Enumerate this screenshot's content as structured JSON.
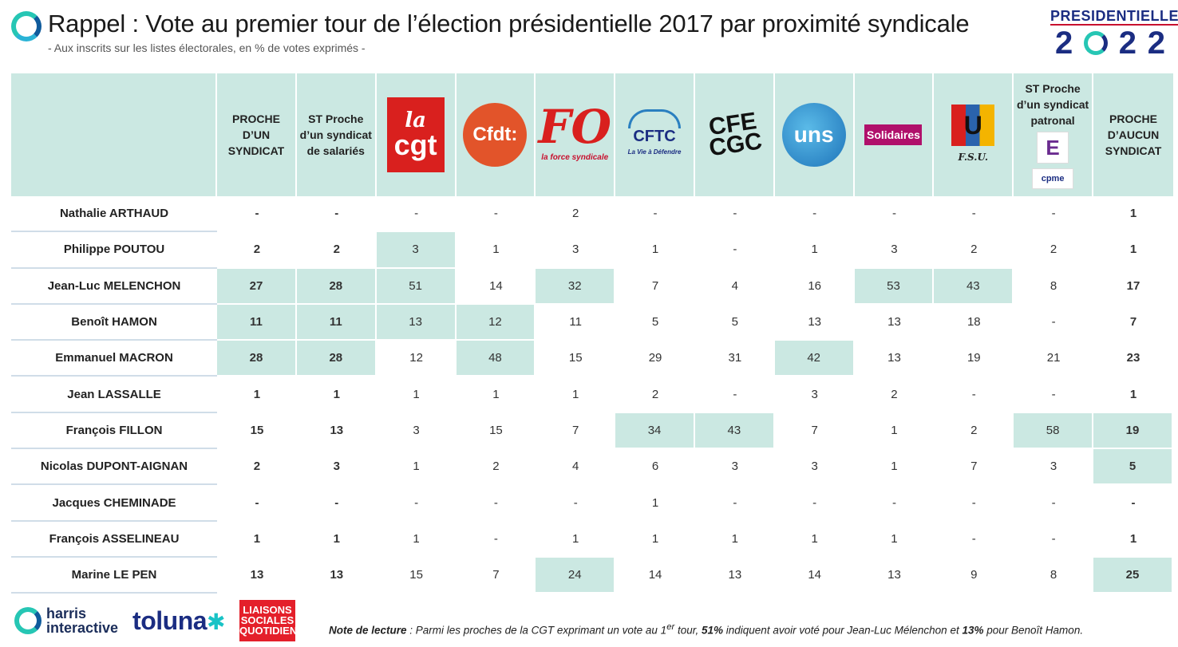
{
  "header": {
    "title": "Rappel : Vote au premier tour de l’élection présidentielle 2017 par proximité syndicale",
    "subtitle": "- Aux inscrits sur les listes électorales, en % de votes exprimés -",
    "logo_word": "PRESIDENTIELLE",
    "logo_year_digit": "2"
  },
  "columns": {
    "c1": "PROCHE D’UN SYNDICAT",
    "c2": "ST Proche d’un syndicat de salariés",
    "c3_logo": "cgt",
    "c4_logo": "cfdt",
    "c5_logo": "fo",
    "c6_logo": "cftc",
    "c7_logo": "cfe-cgc",
    "c8_logo": "unsa",
    "c9_logo": "solidaires",
    "c10_logo": "fsu",
    "c11": "ST Proche d’un syndicat patronal",
    "c12": "PROCHE D’AUCUN SYNDICAT"
  },
  "logo_text": {
    "cgt_la": "la",
    "cgt_main": "cgt",
    "cfdt": "Cfdt:",
    "fo_main": "FO",
    "fo_sub": "la force syndicale",
    "cftc_main": "CFTC",
    "cftc_sub": "La Vie à Défendre",
    "cfe": "CFE",
    "cgc": "CGC",
    "unsa": "uns",
    "solidaires": "Solidaires",
    "fsu_main": "U",
    "fsu_sub": "F.S.U.",
    "ei": "E",
    "cpme": "cpme"
  },
  "rows": [
    {
      "name": "Nathalie ARTHAUD",
      "v": [
        "-",
        "-",
        "-",
        "-",
        "2",
        "-",
        "-",
        "-",
        "-",
        "-",
        "-",
        "1"
      ]
    },
    {
      "name": "Philippe POUTOU",
      "v": [
        "2",
        "2",
        "3",
        "1",
        "3",
        "1",
        "-",
        "1",
        "3",
        "2",
        "2",
        "1"
      ]
    },
    {
      "name": "Jean-Luc MELENCHON",
      "v": [
        "27",
        "28",
        "51",
        "14",
        "32",
        "7",
        "4",
        "16",
        "53",
        "43",
        "8",
        "17"
      ]
    },
    {
      "name": "Benoît HAMON",
      "v": [
        "11",
        "11",
        "13",
        "12",
        "11",
        "5",
        "5",
        "13",
        "13",
        "18",
        "-",
        "7"
      ]
    },
    {
      "name": "Emmanuel MACRON",
      "v": [
        "28",
        "28",
        "12",
        "48",
        "15",
        "29",
        "31",
        "42",
        "13",
        "19",
        "21",
        "23"
      ]
    },
    {
      "name": "Jean LASSALLE",
      "v": [
        "1",
        "1",
        "1",
        "1",
        "1",
        "2",
        "-",
        "3",
        "2",
        "-",
        "-",
        "1"
      ]
    },
    {
      "name": "François FILLON",
      "v": [
        "15",
        "13",
        "3",
        "15",
        "7",
        "34",
        "43",
        "7",
        "1",
        "2",
        "58",
        "19"
      ]
    },
    {
      "name": "Nicolas DUPONT-AIGNAN",
      "v": [
        "2",
        "3",
        "1",
        "2",
        "4",
        "6",
        "3",
        "3",
        "1",
        "7",
        "3",
        "5"
      ]
    },
    {
      "name": "Jacques CHEMINADE",
      "v": [
        "-",
        "-",
        "-",
        "-",
        "-",
        "1",
        "-",
        "-",
        "-",
        "-",
        "-",
        "-"
      ]
    },
    {
      "name": "François ASSELINEAU",
      "v": [
        "1",
        "1",
        "1",
        "-",
        "1",
        "1",
        "1",
        "1",
        "1",
        "-",
        "-",
        "1"
      ]
    },
    {
      "name": "Marine LE PEN",
      "v": [
        "13",
        "13",
        "15",
        "7",
        "24",
        "14",
        "13",
        "14",
        "13",
        "9",
        "8",
        "25"
      ]
    }
  ],
  "footer": {
    "harris_line1": "harris",
    "harris_line2": "interactive",
    "toluna": "toluna",
    "liaisons1": "LIAISONS",
    "liaisons2": "SOCIALES",
    "liaisons3": "QUOTIDIEN",
    "note_label": "Note de lecture",
    "note_p1": " : Parmi les proches de la CGT exprimant un vote au 1",
    "note_sup": "er",
    "note_p2": " tour, ",
    "note_b1": "51%",
    "note_p3": " indiquent avoir voté pour Jean-Luc Mélenchon et ",
    "note_b2": "13%",
    "note_p4": " pour Benoît Hamon."
  },
  "colors": {
    "highlight": "#cbe8e2",
    "accent_teal": "#26c6b4",
    "navy": "#1b2d82"
  }
}
